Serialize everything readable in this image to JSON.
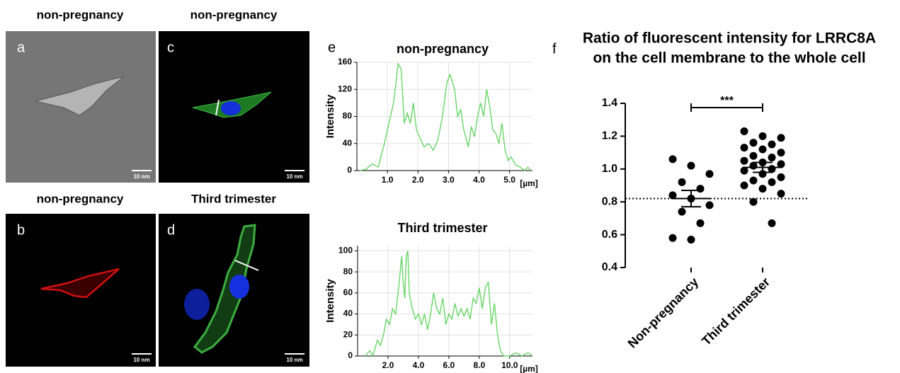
{
  "panels": [
    {
      "letter": "a",
      "title": "non-pregnancy",
      "scale_bar": "10 nm"
    },
    {
      "letter": "b",
      "title": "non-pregnancy",
      "scale_bar": "10 nm"
    },
    {
      "letter": "c",
      "title": "non-pregnancy",
      "scale_bar": "10 nm"
    },
    {
      "letter": "d",
      "title": "Third trimester",
      "scale_bar": "10 nm"
    }
  ],
  "chart_data": [
    {
      "type": "line",
      "letter": "e",
      "title": "non-pregnancy",
      "y_label": "Intensity",
      "x_unit": "[µm]",
      "color": "#5cd35c",
      "grid": true,
      "x": [
        0.1,
        0.3,
        0.5,
        0.7,
        0.9,
        1.0,
        1.2,
        1.35,
        1.45,
        1.55,
        1.65,
        1.75,
        1.85,
        1.95,
        2.1,
        2.2,
        2.35,
        2.5,
        2.65,
        2.8,
        2.95,
        3.05,
        3.2,
        3.3,
        3.4,
        3.5,
        3.65,
        3.75,
        3.85,
        3.95,
        4.05,
        4.15,
        4.25,
        4.35,
        4.45,
        4.55,
        4.65,
        4.75,
        4.85,
        4.95,
        5.05,
        5.2,
        5.35,
        5.5,
        5.6,
        5.7
      ],
      "values": [
        0,
        2,
        10,
        5,
        40,
        60,
        100,
        158,
        150,
        70,
        85,
        70,
        100,
        60,
        45,
        35,
        40,
        30,
        45,
        80,
        130,
        142,
        120,
        80,
        90,
        60,
        35,
        65,
        50,
        80,
        100,
        80,
        120,
        95,
        60,
        55,
        40,
        70,
        30,
        15,
        20,
        8,
        5,
        0,
        5,
        0
      ],
      "xlim": [
        0,
        5.75
      ],
      "xticks": [
        {
          "value": 1,
          "label": "1.0"
        },
        {
          "value": 2,
          "label": "2.0"
        },
        {
          "value": 3,
          "label": "3.0"
        },
        {
          "value": 4,
          "label": "4.0"
        },
        {
          "value": 5,
          "label": "5.0"
        }
      ],
      "ylim": [
        0,
        160
      ],
      "yticks": [
        0,
        40,
        80,
        120,
        160
      ]
    },
    {
      "type": "line",
      "title": "Third trimester",
      "y_label": "Intensity",
      "x_unit": "[µm]",
      "color": "#5cd35c",
      "grid": true,
      "x": [
        0.5,
        0.8,
        1.0,
        1.3,
        1.5,
        1.7,
        1.9,
        2.1,
        2.3,
        2.5,
        2.7,
        2.9,
        3.0,
        3.1,
        3.2,
        3.3,
        3.4,
        3.6,
        3.8,
        4.0,
        4.2,
        4.4,
        4.6,
        4.8,
        5.0,
        5.2,
        5.4,
        5.6,
        5.8,
        6.0,
        6.2,
        6.4,
        6.6,
        6.8,
        7.0,
        7.2,
        7.4,
        7.6,
        7.8,
        8.0,
        8.2,
        8.4,
        8.6,
        8.8,
        9.0,
        9.2,
        9.4,
        9.6,
        10.0,
        10.4,
        10.8,
        11.2,
        11.5
      ],
      "values": [
        0,
        5,
        0,
        15,
        10,
        20,
        35,
        30,
        45,
        40,
        65,
        95,
        70,
        55,
        95,
        100,
        60,
        45,
        35,
        40,
        30,
        40,
        25,
        40,
        60,
        45,
        40,
        55,
        30,
        40,
        35,
        50,
        38,
        45,
        38,
        45,
        35,
        55,
        50,
        65,
        45,
        65,
        70,
        30,
        50,
        20,
        5,
        0,
        0,
        3,
        0,
        3,
        0
      ],
      "xlim": [
        0,
        11.5
      ],
      "xticks": [
        {
          "value": 2,
          "label": "2.0"
        },
        {
          "value": 4,
          "label": "4.0"
        },
        {
          "value": 6,
          "label": "6.0"
        },
        {
          "value": 8,
          "label": "8.0"
        },
        {
          "value": 10,
          "label": "10.0"
        }
      ],
      "ylim": [
        0,
        105
      ],
      "yticks": [
        0,
        20,
        40,
        60,
        80,
        100
      ]
    },
    {
      "type": "scatter",
      "letter": "f",
      "title": [
        "Ratio of fluorescent intensity for LRRC8A",
        "on the cell membrane to the whole cell"
      ],
      "categories": [
        "Non-pregnancy",
        "Third trimester"
      ],
      "color": "#000000",
      "groups": [
        {
          "values": [
            1.06,
            1.02,
            0.97,
            0.92,
            0.88,
            0.84,
            0.82,
            0.78,
            0.74,
            0.67,
            0.58,
            0.57
          ],
          "mean": 0.82,
          "sem": 0.05
        },
        {
          "values": [
            1.23,
            1.2,
            1.19,
            1.16,
            1.15,
            1.13,
            1.12,
            1.1,
            1.08,
            1.07,
            1.05,
            1.04,
            1.03,
            1.02,
            1.0,
            0.99,
            0.97,
            0.95,
            0.93,
            0.92,
            0.9,
            0.88,
            0.85,
            0.8,
            0.67
          ],
          "mean": 1.01,
          "sem": 0.03
        }
      ],
      "reference_line": 0.82,
      "significance": "***",
      "ylim": [
        0.4,
        1.4
      ],
      "yticks": [
        0.4,
        0.6,
        0.8,
        {
          "value": 1,
          "label": "1.0"
        },
        1.2,
        1.4
      ]
    }
  ]
}
